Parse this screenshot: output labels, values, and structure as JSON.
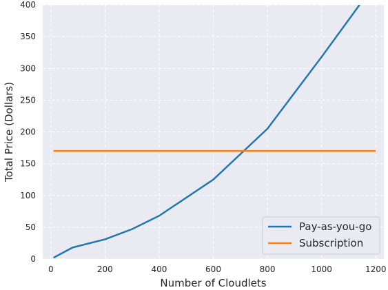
{
  "chart_data": {
    "type": "line",
    "title": "",
    "xlabel": "Number of Cloudlets",
    "ylabel": "Total Price (Dollars)",
    "xlim": [
      -30,
      1230
    ],
    "ylim": [
      0,
      400
    ],
    "xticks": [
      0,
      200,
      400,
      600,
      800,
      1000,
      1200
    ],
    "yticks": [
      0,
      50,
      100,
      150,
      200,
      250,
      300,
      350,
      400
    ],
    "grid": true,
    "legend": "lower-right",
    "background": "#eaeaf2",
    "series": [
      {
        "name": "Pay-as-you-go",
        "color": "#1f77b4",
        "x": [
          10,
          80,
          200,
          300,
          400,
          600,
          800,
          1000,
          1200
        ],
        "y": [
          2,
          18,
          31,
          47,
          68,
          125,
          205,
          318,
          435
        ]
      },
      {
        "name": "Subscription",
        "color": "#ff7f0e",
        "x": [
          10,
          1200
        ],
        "y": [
          170,
          170
        ]
      }
    ]
  }
}
